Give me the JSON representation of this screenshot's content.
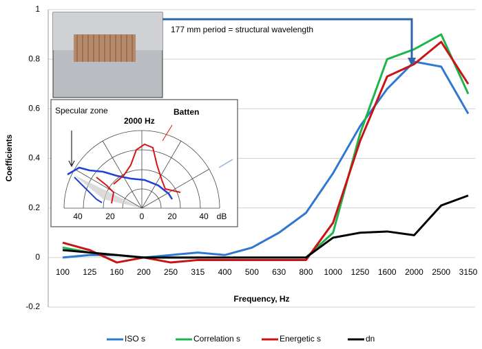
{
  "chart_data": {
    "type": "line",
    "xlabel": "Frequency, Hz",
    "ylabel": "Coefficients",
    "categories": [
      "100",
      "125",
      "160",
      "200",
      "250",
      "315",
      "400",
      "500",
      "630",
      "800",
      "1000",
      "1250",
      "1600",
      "2000",
      "2500",
      "3150"
    ],
    "series": [
      {
        "name": "ISO s",
        "color": "#2f78d2",
        "values": [
          0.0,
          0.01,
          0.01,
          0.0,
          0.01,
          0.02,
          0.01,
          0.04,
          0.1,
          0.18,
          0.34,
          0.53,
          0.68,
          0.79,
          0.77,
          0.58
        ]
      },
      {
        "name": "Correlation s",
        "color": "#1eb44c",
        "values": [
          0.04,
          0.02,
          0.01,
          0.0,
          0.0,
          0.0,
          0.0,
          0.0,
          0.0,
          0.0,
          0.1,
          0.5,
          0.8,
          0.84,
          0.9,
          0.66
        ]
      },
      {
        "name": "Energetic s",
        "color": "#c81414",
        "values": [
          0.06,
          0.03,
          -0.02,
          0.0,
          -0.02,
          -0.01,
          -0.01,
          -0.01,
          -0.01,
          -0.01,
          0.14,
          0.47,
          0.73,
          0.78,
          0.87,
          0.7
        ]
      },
      {
        "name": "dn",
        "color": "#000000",
        "values": [
          0.03,
          0.02,
          0.01,
          0.0,
          0.0,
          0.0,
          0.0,
          0.0,
          0.0,
          0.0,
          0.08,
          0.1,
          0.105,
          0.09,
          0.21,
          0.25
        ]
      }
    ],
    "ylim": [
      -0.2,
      1
    ],
    "yticks": [
      -0.2,
      0,
      0.2,
      0.4,
      0.6,
      0.8,
      1
    ],
    "grid": true,
    "legend": "bottom",
    "annotation": "177 mm period = structural wavelength",
    "inset": {
      "zone": "Specular zone",
      "title": "2000 Hz",
      "label": "Batten",
      "scale_labels": [
        "40",
        "20",
        "0",
        "20",
        "40"
      ],
      "unit": "dB"
    }
  }
}
